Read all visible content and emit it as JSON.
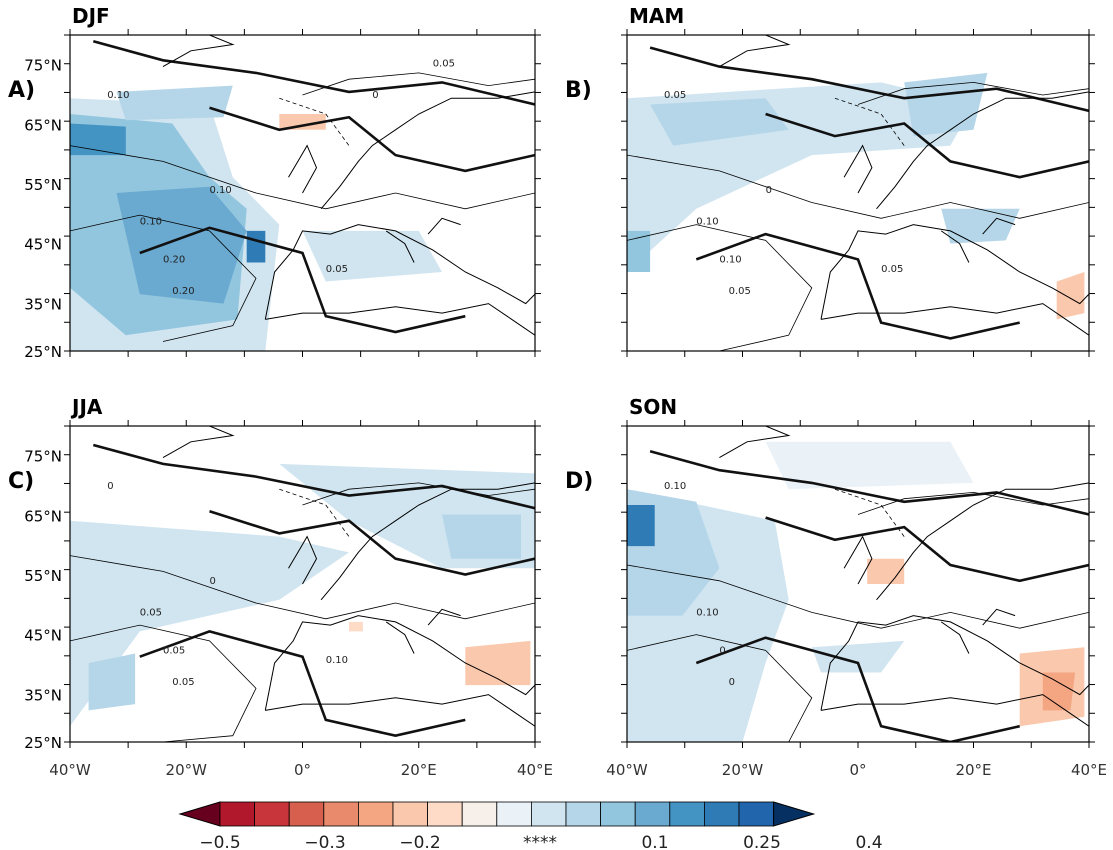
{
  "panels": [
    {
      "id": "a",
      "season": "DJF",
      "letter": "A)",
      "show_lat_labels": true,
      "show_lon_labels": false,
      "contour_labels": [
        "0.10",
        "0.10",
        "0.20",
        "0.20",
        "0.05",
        "0.10",
        "0.05",
        "0"
      ]
    },
    {
      "id": "b",
      "season": "MAM",
      "letter": "B)",
      "show_lat_labels": false,
      "show_lon_labels": false,
      "contour_labels": [
        "0.05",
        "0.10",
        "0.10",
        "0.05",
        "0.05",
        "0"
      ]
    },
    {
      "id": "c",
      "season": "JJA",
      "letter": "C)",
      "show_lat_labels": true,
      "show_lon_labels": true,
      "contour_labels": [
        "0",
        "0.05",
        "0.05",
        "0.05",
        "0.10",
        "0"
      ]
    },
    {
      "id": "d",
      "season": "SON",
      "letter": "D)",
      "show_lat_labels": false,
      "show_lon_labels": true,
      "contour_labels": [
        "0.10",
        "0.10",
        "0",
        "0"
      ]
    }
  ],
  "lat_labels": [
    "75°N",
    "65°N",
    "55°N",
    "45°N",
    "35°N",
    "25°N"
  ],
  "lon_labels": [
    "40°W",
    "20°W",
    "0°",
    "20°E",
    "40°E"
  ],
  "colorbar": {
    "colors": [
      "#67001f",
      "#b2182b",
      "#c8353a",
      "#d6604d",
      "#ea8a6c",
      "#f4a582",
      "#fac8ad",
      "#fddbc7",
      "#f7f0ea",
      "#eaf2f8",
      "#d1e5f0",
      "#b5d6e9",
      "#92c5de",
      "#6aa9d0",
      "#4393c3",
      "#2f7bb6",
      "#2166ac",
      "#053061"
    ],
    "tick_labels": [
      "−0.5",
      "−0.3",
      "−0.2",
      "****",
      "0.1",
      "0.25",
      "0.4"
    ]
  }
}
